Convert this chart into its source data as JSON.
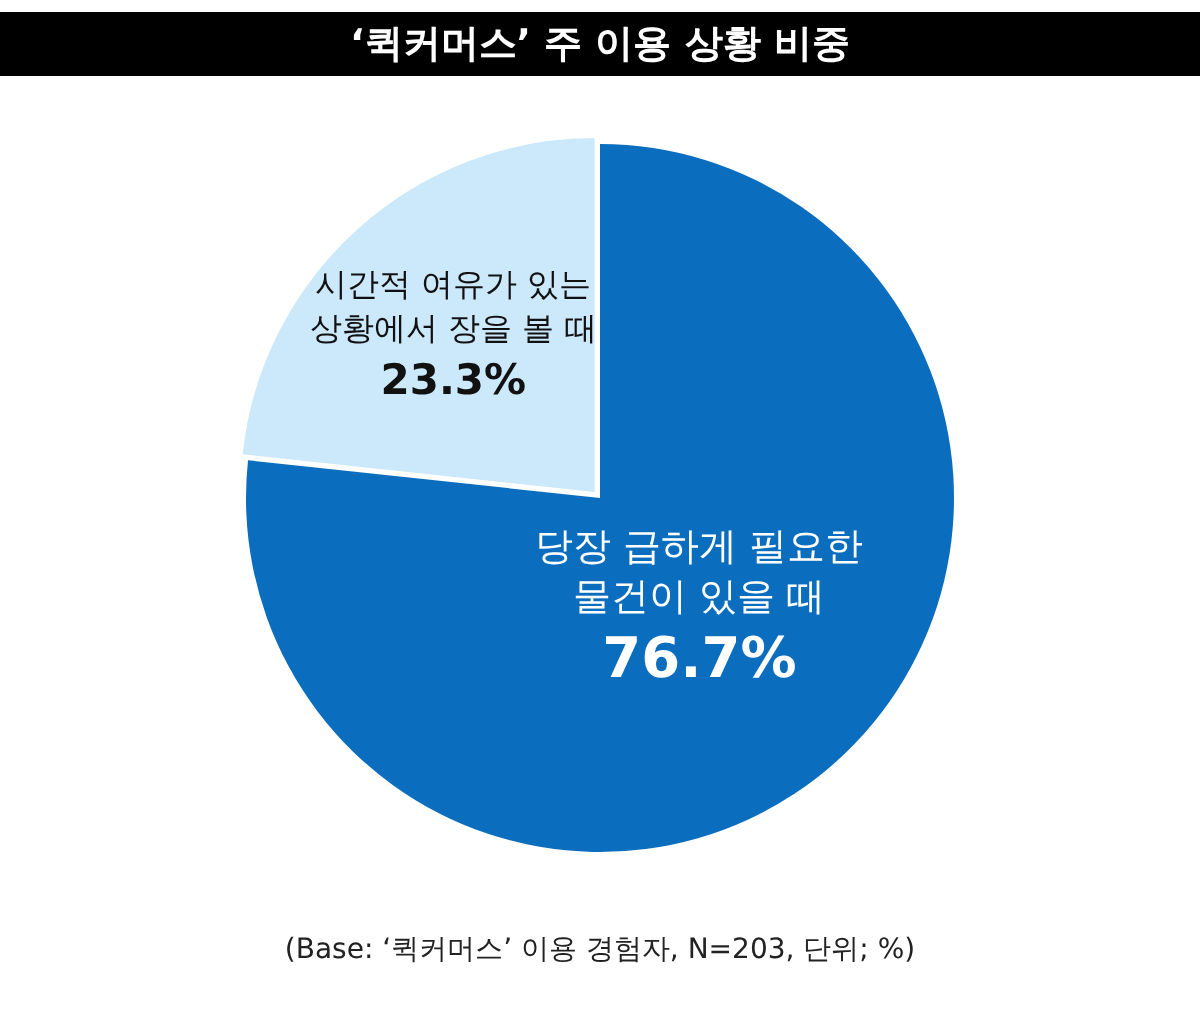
{
  "chart_data": {
    "type": "pie",
    "title": "‘퀵커머스’ 주 이용 상황 비중",
    "categories": [
      "당장 급하게 필요한\n물건이 있을 때",
      "시간적 여유가 있는\n상황에서 장을 볼 때"
    ],
    "values": [
      76.7,
      23.3
    ],
    "colors": [
      "#0a6dbd",
      "#cce8fb"
    ],
    "value_labels": [
      "76.7%",
      "23.3%"
    ],
    "legend": false,
    "annotations": [
      "(Base: ‘퀵커머스’ 이용 경험자, N=203, 단위; %)"
    ]
  }
}
